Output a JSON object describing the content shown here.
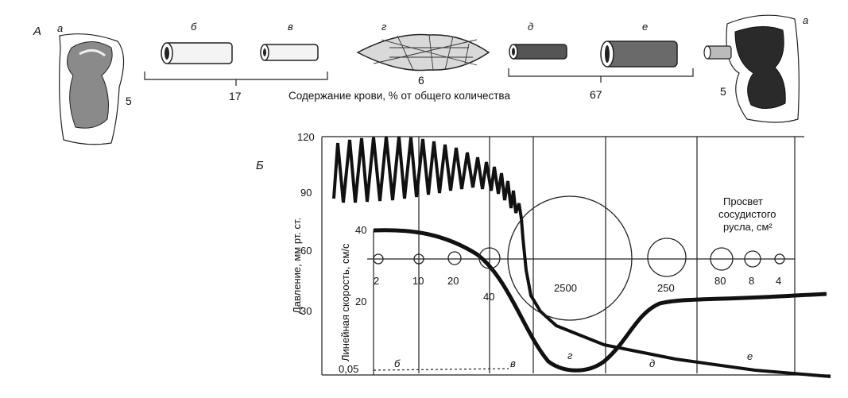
{
  "panel_labels": {
    "a": "А",
    "b": "Б"
  },
  "vessels": {
    "heart_left": {
      "letter": "а",
      "value": "5"
    },
    "artery": {
      "letter": "б"
    },
    "arteriole": {
      "letter": "в"
    },
    "capillary": {
      "letter": "г",
      "value": "6"
    },
    "venule": {
      "letter": "д"
    },
    "vein": {
      "letter": "е"
    },
    "heart_right": {
      "letter": "а",
      "value": "5"
    }
  },
  "groups": {
    "arterial": {
      "value": "17"
    },
    "venous": {
      "value": "67"
    }
  },
  "caption": "Содержание крови, % от общего количества",
  "graph": {
    "y_axis_pressure_label": "Давление, мм рт. ст.",
    "y_axis_velocity_label": "Линейная скорость, см/с",
    "lumen_label_lines": [
      "Просвет",
      "сосудистого",
      "русла, см²"
    ],
    "pressure_ticks": [
      "120",
      "90",
      "60",
      "30"
    ],
    "velocity_ticks": [
      "40",
      "20",
      "0,05"
    ],
    "lumen_circles": [
      "2",
      "10",
      "20",
      "40",
      "2500",
      "250",
      "80",
      "8",
      "4"
    ],
    "zone_letters": [
      "б",
      "в",
      "г",
      "д",
      "е"
    ]
  },
  "chart_data": {
    "type": "line",
    "series": [
      {
        "name": "Давление",
        "x": [
          0,
          1,
          2,
          3,
          4,
          5,
          6,
          7,
          8,
          9,
          10
        ],
        "values": [
          105,
          104,
          102,
          98,
          90,
          40,
          25,
          18,
          12,
          8,
          5
        ]
      },
      {
        "name": "Линейная скорость",
        "x": [
          0,
          1,
          2,
          3,
          4,
          5,
          6,
          7,
          8,
          9,
          10
        ],
        "values": [
          40,
          38,
          33,
          22,
          8,
          0.05,
          0.05,
          8,
          17,
          20,
          22
        ]
      }
    ],
    "ylim_pressure": [
      0,
      120
    ],
    "ylim_velocity": [
      0,
      40
    ]
  },
  "colors": {
    "ink": "#111111",
    "background": "#ffffff"
  }
}
